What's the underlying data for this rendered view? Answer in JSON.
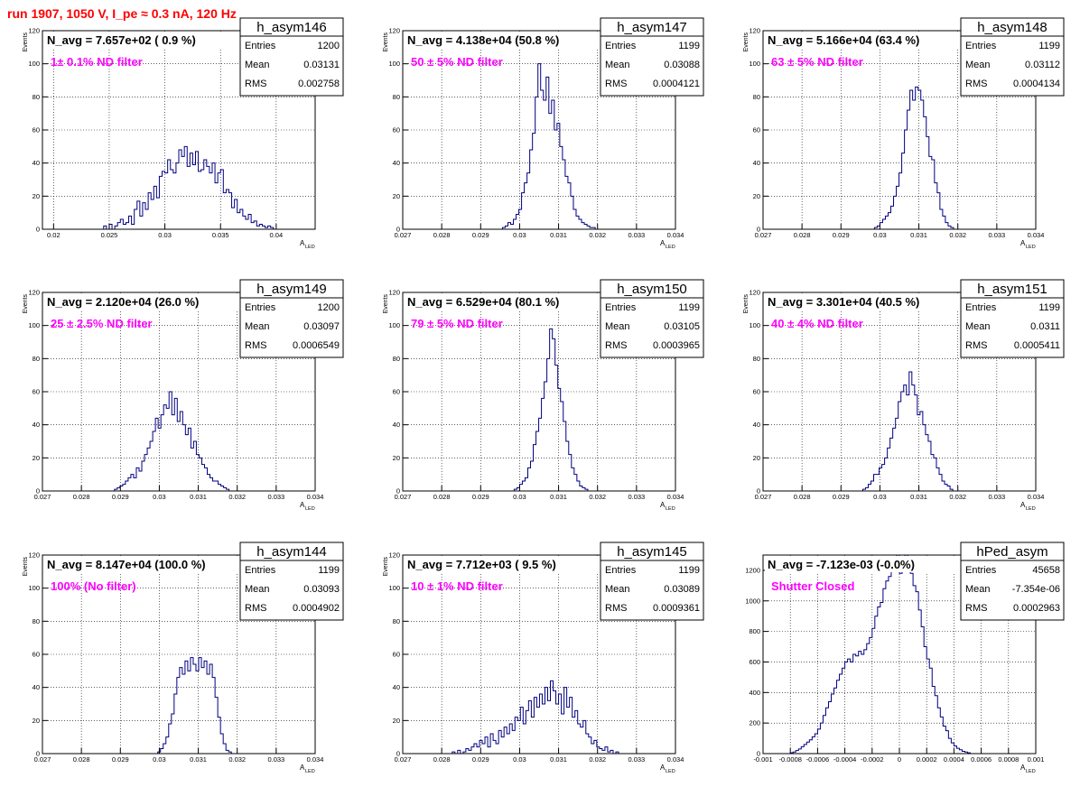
{
  "page": {
    "title": "run 1907,  1050 V, I_pe ≈ 0.3 nA, 120 Hz"
  },
  "colors": {
    "title": "#ff0000",
    "annotation": "#ff00ff",
    "histogram": "#000080",
    "frame": "#000000",
    "grid": "#000000"
  },
  "chart_data": [
    {
      "type": "histogram",
      "grid": true,
      "stats_box": "top-right",
      "hist_name": "h_asym146",
      "label": "N_avg = 7.657e+02 ( 0.9 %)",
      "annotation": "1± 0.1% ND filter",
      "stats": {
        "entries": "1200",
        "mean": "0.03131",
        "rms": "0.002758"
      },
      "xlabel": "A",
      "xlabel_sub": "LED",
      "ylabel": "Events",
      "xlim": [
        0.019,
        0.0435
      ],
      "ylim": [
        0,
        120
      ],
      "xticks": [
        0.02,
        0.025,
        0.03,
        0.035,
        0.04
      ],
      "xticklabels": [
        "0.02",
        "0.025",
        "0.03",
        "0.035",
        "0.04"
      ],
      "yticks": [
        0,
        20,
        40,
        60,
        80,
        100,
        120
      ],
      "yticklabels": [
        "0",
        "20",
        "40",
        "60",
        "80",
        "100",
        "120"
      ],
      "x_start": 0.0215,
      "bin_width": 0.00025,
      "values": [
        0,
        0,
        0,
        0,
        0,
        0,
        0,
        0,
        0,
        0,
        0,
        0,
        2,
        0,
        3,
        0,
        2,
        4,
        6,
        3,
        4,
        8,
        3,
        12,
        17,
        8,
        16,
        12,
        22,
        18,
        26,
        19,
        32,
        35,
        34,
        42,
        36,
        34,
        40,
        48,
        44,
        50,
        38,
        46,
        39,
        47,
        35,
        36,
        42,
        38,
        34,
        40,
        28,
        34,
        36,
        22,
        24,
        22,
        13,
        18,
        10,
        12,
        8,
        6,
        9,
        4,
        5,
        2,
        3,
        2,
        1,
        2,
        1,
        0,
        0,
        0,
        0,
        0,
        0,
        0,
        0,
        0,
        0,
        0,
        0,
        0,
        0,
        0,
        0,
        0
      ]
    },
    {
      "type": "histogram",
      "grid": true,
      "stats_box": "top-right",
      "hist_name": "h_asym147",
      "label": "N_avg = 4.138e+04 (50.8 %)",
      "annotation": "50 ± 5% ND filter",
      "stats": {
        "entries": "1199",
        "mean": "0.03088",
        "rms": "0.0004121"
      },
      "xlabel": "A",
      "xlabel_sub": "LED",
      "ylabel": "Events",
      "xlim": [
        0.027,
        0.034
      ],
      "ylim": [
        0,
        120
      ],
      "xticks": [
        0.027,
        0.028,
        0.029,
        0.03,
        0.031,
        0.032,
        0.033,
        0.034
      ],
      "xticklabels": [
        "0.027",
        "0.028",
        "0.029",
        "0.03",
        "0.031",
        "0.032",
        "0.033",
        "0.034"
      ],
      "yticks": [
        0,
        20,
        40,
        60,
        80,
        100,
        120
      ],
      "yticklabels": [
        "0",
        "20",
        "40",
        "60",
        "80",
        "100",
        "120"
      ],
      "x_start": 0.029,
      "bin_width": 7e-05,
      "values": [
        0,
        0,
        0,
        0,
        0,
        0,
        0,
        0,
        1,
        2,
        4,
        3,
        6,
        9,
        12,
        22,
        28,
        34,
        48,
        58,
        80,
        100,
        84,
        78,
        92,
        70,
        78,
        60,
        64,
        50,
        42,
        32,
        28,
        20,
        12,
        8,
        6,
        4,
        3,
        2,
        1,
        1,
        0,
        0,
        0,
        0,
        0,
        0,
        0,
        0
      ]
    },
    {
      "type": "histogram",
      "grid": true,
      "stats_box": "top-right",
      "hist_name": "h_asym148",
      "label": "N_avg = 5.166e+04 (63.4 %)",
      "annotation": "63 ± 5% ND filter",
      "stats": {
        "entries": "1199",
        "mean": "0.03112",
        "rms": "0.0004134"
      },
      "xlabel": "A",
      "xlabel_sub": "LED",
      "ylabel": "Events",
      "xlim": [
        0.027,
        0.034
      ],
      "ylim": [
        0,
        120
      ],
      "xticks": [
        0.027,
        0.028,
        0.029,
        0.03,
        0.031,
        0.032,
        0.033,
        0.034
      ],
      "xticklabels": [
        "0.027",
        "0.028",
        "0.029",
        "0.03",
        "0.031",
        "0.032",
        "0.033",
        "0.034"
      ],
      "yticks": [
        0,
        20,
        40,
        60,
        80,
        100,
        120
      ],
      "yticklabels": [
        "0",
        "20",
        "40",
        "60",
        "80",
        "100",
        "120"
      ],
      "x_start": 0.0293,
      "bin_width": 7e-05,
      "values": [
        0,
        0,
        0,
        0,
        0,
        0,
        0,
        0,
        1,
        2,
        4,
        6,
        8,
        10,
        14,
        20,
        26,
        34,
        46,
        60,
        72,
        84,
        78,
        86,
        84,
        78,
        68,
        56,
        44,
        42,
        28,
        22,
        12,
        8,
        4,
        2,
        1,
        0,
        0,
        0,
        0,
        0,
        0,
        0
      ]
    },
    {
      "type": "histogram",
      "grid": true,
      "stats_box": "top-right",
      "hist_name": "h_asym149",
      "label": "N_avg = 2.120e+04 (26.0 %)",
      "annotation": "25 ± 2.5% ND filter",
      "stats": {
        "entries": "1200",
        "mean": "0.03097",
        "rms": "0.0006549"
      },
      "xlabel": "A",
      "xlabel_sub": "LED",
      "ylabel": "Events",
      "xlim": [
        0.027,
        0.034
      ],
      "ylim": [
        0,
        120
      ],
      "xticks": [
        0.027,
        0.028,
        0.029,
        0.03,
        0.031,
        0.032,
        0.033,
        0.034
      ],
      "xticklabels": [
        "0.027",
        "0.028",
        "0.029",
        "0.03",
        "0.031",
        "0.032",
        "0.033",
        "0.034"
      ],
      "yticks": [
        0,
        20,
        40,
        60,
        80,
        100,
        120
      ],
      "yticklabels": [
        "0",
        "20",
        "40",
        "60",
        "80",
        "100",
        "120"
      ],
      "x_start": 0.0285,
      "bin_width": 7e-05,
      "values": [
        0,
        0,
        0,
        0,
        0,
        1,
        2,
        3,
        4,
        6,
        8,
        10,
        8,
        14,
        12,
        18,
        22,
        26,
        30,
        36,
        44,
        38,
        46,
        52,
        50,
        60,
        46,
        56,
        42,
        48,
        40,
        34,
        38,
        26,
        30,
        22,
        20,
        16,
        14,
        10,
        8,
        6,
        6,
        4,
        3,
        2,
        1,
        0,
        0,
        0,
        0,
        0,
        0,
        0,
        0
      ]
    },
    {
      "type": "histogram",
      "grid": true,
      "stats_box": "top-right",
      "hist_name": "h_asym150",
      "label": "N_avg = 6.529e+04 (80.1 %)",
      "annotation": "79 ± 5% ND filter",
      "stats": {
        "entries": "1199",
        "mean": "0.03105",
        "rms": "0.0003965"
      },
      "xlabel": "A",
      "xlabel_sub": "LED",
      "ylabel": "Events",
      "xlim": [
        0.027,
        0.034
      ],
      "ylim": [
        0,
        120
      ],
      "xticks": [
        0.027,
        0.028,
        0.029,
        0.03,
        0.031,
        0.032,
        0.033,
        0.034
      ],
      "xticklabels": [
        "0.027",
        "0.028",
        "0.029",
        "0.03",
        "0.031",
        "0.032",
        "0.033",
        "0.034"
      ],
      "yticks": [
        0,
        20,
        40,
        60,
        80,
        100,
        120
      ],
      "yticklabels": [
        "0",
        "20",
        "40",
        "60",
        "80",
        "100",
        "120"
      ],
      "x_start": 0.0293,
      "bin_width": 7e-05,
      "values": [
        0,
        0,
        0,
        0,
        0,
        0,
        0,
        0,
        1,
        2,
        4,
        6,
        8,
        14,
        18,
        28,
        36,
        44,
        56,
        66,
        80,
        98,
        92,
        76,
        62,
        54,
        42,
        30,
        22,
        14,
        10,
        6,
        3,
        2,
        1,
        0,
        0,
        0,
        0,
        0,
        0,
        0
      ]
    },
    {
      "type": "histogram",
      "grid": true,
      "stats_box": "top-right",
      "hist_name": "h_asym151",
      "label": "N_avg = 3.301e+04 (40.5 %)",
      "annotation": "40 ± 4% ND filter",
      "stats": {
        "entries": "1199",
        "mean": "0.0311",
        "rms": "0.0005411"
      },
      "xlabel": "A",
      "xlabel_sub": "LED",
      "ylabel": "Events",
      "xlim": [
        0.027,
        0.034
      ],
      "ylim": [
        0,
        120
      ],
      "xticks": [
        0.027,
        0.028,
        0.029,
        0.03,
        0.031,
        0.032,
        0.033,
        0.034
      ],
      "xticklabels": [
        "0.027",
        "0.028",
        "0.029",
        "0.03",
        "0.031",
        "0.032",
        "0.033",
        "0.034"
      ],
      "yticks": [
        0,
        20,
        40,
        60,
        80,
        100,
        120
      ],
      "yticklabels": [
        "0",
        "20",
        "40",
        "60",
        "80",
        "100",
        "120"
      ],
      "x_start": 0.029,
      "bin_width": 7e-05,
      "values": [
        0,
        0,
        0,
        0,
        0,
        0,
        0,
        0,
        1,
        2,
        4,
        6,
        10,
        10,
        14,
        16,
        20,
        26,
        32,
        38,
        44,
        54,
        60,
        64,
        58,
        72,
        64,
        58,
        46,
        48,
        40,
        34,
        30,
        22,
        20,
        14,
        10,
        6,
        4,
        3,
        1,
        0,
        0,
        0,
        0,
        0,
        0,
        0,
        0,
        0
      ]
    },
    {
      "type": "histogram",
      "grid": true,
      "stats_box": "top-right",
      "hist_name": "h_asym144",
      "label": "N_avg = 8.147e+04 (100.0 %)",
      "annotation": "100% (No filter)",
      "stats": {
        "entries": "1199",
        "mean": "0.03093",
        "rms": "0.0004902"
      },
      "xlabel": "A",
      "xlabel_sub": "LED",
      "ylabel": "Events",
      "xlim": [
        0.027,
        0.034
      ],
      "ylim": [
        0,
        120
      ],
      "xticks": [
        0.027,
        0.028,
        0.029,
        0.03,
        0.031,
        0.032,
        0.033,
        0.034
      ],
      "xticklabels": [
        "0.027",
        "0.028",
        "0.029",
        "0.03",
        "0.031",
        "0.032",
        "0.033",
        "0.034"
      ],
      "yticks": [
        0,
        20,
        40,
        60,
        80,
        100,
        120
      ],
      "yticklabels": [
        "0",
        "20",
        "40",
        "60",
        "80",
        "100",
        "120"
      ],
      "x_start": 0.0294,
      "bin_width": 7e-05,
      "values": [
        0,
        0,
        0,
        0,
        0,
        0,
        0,
        0,
        1,
        3,
        6,
        10,
        18,
        24,
        36,
        46,
        52,
        48,
        56,
        50,
        58,
        54,
        50,
        58,
        52,
        56,
        48,
        54,
        46,
        34,
        22,
        12,
        6,
        2,
        1,
        0,
        0,
        0,
        0,
        0,
        0
      ]
    },
    {
      "type": "histogram",
      "grid": true,
      "stats_box": "top-right",
      "hist_name": "h_asym145",
      "label": "N_avg = 7.712e+03 ( 9.5 %)",
      "annotation": "10 ± 1% ND filter",
      "stats": {
        "entries": "1199",
        "mean": "0.03089",
        "rms": "0.0009361"
      },
      "xlabel": "A",
      "xlabel_sub": "LED",
      "ylabel": "Events",
      "xlim": [
        0.027,
        0.034
      ],
      "ylim": [
        0,
        120
      ],
      "xticks": [
        0.027,
        0.028,
        0.029,
        0.03,
        0.031,
        0.032,
        0.033,
        0.034
      ],
      "xticklabels": [
        "0.027",
        "0.028",
        "0.029",
        "0.03",
        "0.031",
        "0.032",
        "0.033",
        "0.034"
      ],
      "yticks": [
        0,
        20,
        40,
        60,
        80,
        100,
        120
      ],
      "yticklabels": [
        "0",
        "20",
        "40",
        "60",
        "80",
        "100",
        "120"
      ],
      "x_start": 0.0275,
      "bin_width": 7e-05,
      "values": [
        0,
        0,
        0,
        0,
        0,
        0,
        0,
        0,
        0,
        0,
        0,
        1,
        0,
        2,
        0,
        1,
        3,
        2,
        4,
        6,
        4,
        8,
        6,
        10,
        4,
        12,
        8,
        6,
        14,
        10,
        16,
        12,
        18,
        14,
        22,
        20,
        28,
        18,
        26,
        32,
        22,
        34,
        28,
        36,
        30,
        40,
        32,
        44,
        38,
        30,
        36,
        24,
        40,
        28,
        34,
        22,
        26,
        18,
        16,
        20,
        12,
        10,
        6,
        8,
        4,
        3,
        2,
        4,
        1,
        2,
        0,
        1,
        0,
        0,
        0,
        0,
        0,
        0,
        0,
        0
      ]
    },
    {
      "type": "histogram",
      "grid": true,
      "stats_box": "top-right",
      "hist_name": "hPed_asym",
      "label": "N_avg = -7.123e-03 (-0.0%)",
      "annotation": "Shutter Closed",
      "stats": {
        "entries": "45658",
        "mean": "-7.354e-06",
        "rms": "0.0002963"
      },
      "xlabel": "A",
      "xlabel_sub": "LED",
      "ylabel": "",
      "xlim": [
        -0.001,
        0.001
      ],
      "ylim": [
        0,
        1300
      ],
      "xticks": [
        -0.001,
        -0.0008,
        -0.0006,
        -0.0004,
        -0.0002,
        0,
        0.0002,
        0.0004,
        0.0006,
        0.0008,
        0.001
      ],
      "xticklabels": [
        "-0.001",
        "-0.0008",
        "-0.0006",
        "-0.0004",
        "-0.0002",
        "0",
        "0.0002",
        "0.0004",
        "0.0006",
        "0.0008",
        "0.001"
      ],
      "yticks": [
        0,
        200,
        400,
        600,
        800,
        1000,
        1200
      ],
      "yticklabels": [
        "0",
        "200",
        "400",
        "600",
        "800",
        "1000",
        "1200"
      ],
      "x_start": -0.001,
      "bin_width": 2e-05,
      "values": [
        0,
        0,
        0,
        0,
        0,
        0,
        0,
        0,
        0,
        0,
        5,
        10,
        20,
        30,
        45,
        60,
        75,
        90,
        110,
        130,
        160,
        200,
        250,
        300,
        340,
        390,
        430,
        480,
        520,
        560,
        600,
        620,
        600,
        650,
        640,
        670,
        650,
        680,
        720,
        760,
        820,
        900,
        960,
        990,
        1080,
        1130,
        1160,
        1210,
        1240,
        1300,
        1180,
        1260,
        1300,
        1260,
        1180,
        1100,
        1060,
        940,
        830,
        700,
        620,
        560,
        440,
        380,
        300,
        240,
        180,
        150,
        100,
        70,
        50,
        35,
        25,
        15,
        10,
        5,
        0,
        0,
        0,
        0,
        0,
        0,
        0,
        0,
        0,
        0,
        0,
        0,
        0,
        0,
        0,
        0,
        0,
        0,
        0,
        0,
        0,
        0,
        0,
        0,
        0,
        0
      ]
    }
  ]
}
